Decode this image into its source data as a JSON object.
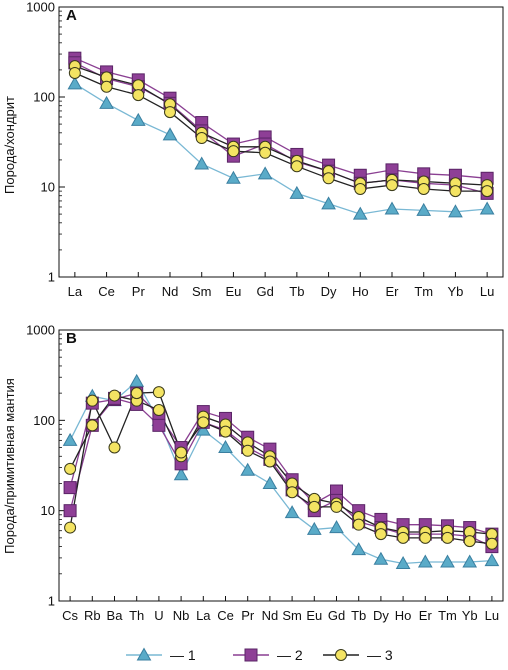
{
  "styles": [
    {
      "marker": "triangle",
      "fill": "#5aabc8",
      "stroke": "#3a7fa0",
      "line": "#79b8d4"
    },
    {
      "marker": "square",
      "fill": "#8e3f96",
      "stroke": "#5a2466",
      "line": "#8a3f92"
    },
    {
      "marker": "circle",
      "fill": "#f4e463",
      "stroke": "#3a3a1a",
      "line": "#222222"
    }
  ],
  "legend": {
    "items": [
      {
        "label": "— 1",
        "style": 0
      },
      {
        "label": "— 2",
        "style": 1
      },
      {
        "label": "— 3",
        "style": 2
      }
    ]
  },
  "chart_data": [
    {
      "type": "line",
      "panel_label": "A",
      "ylabel": "Порода/хондрит",
      "yscale": "log",
      "ylim": [
        1,
        1000
      ],
      "yticks": [
        1,
        10,
        100,
        1000
      ],
      "categories": [
        "La",
        "Ce",
        "Pr",
        "Nd",
        "Sm",
        "Eu",
        "Gd",
        "Tb",
        "Dy",
        "Ho",
        "Er",
        "Tm",
        "Yb",
        "Lu"
      ],
      "series": [
        {
          "style": 0,
          "values": [
            140,
            85,
            55,
            38,
            18,
            12.5,
            14,
            8.5,
            6.5,
            5,
            5.7,
            5.5,
            5.3,
            5.7
          ]
        },
        {
          "style": 1,
          "values": [
            270,
            190,
            155,
            97,
            52,
            30,
            36,
            23,
            17.5,
            13.5,
            15.5,
            14,
            13.5,
            12.5
          ]
        },
        {
          "style": 1,
          "values": [
            240,
            160,
            130,
            85,
            42,
            22,
            30,
            19,
            15,
            11,
            12,
            11,
            10.5,
            8.5
          ]
        },
        {
          "style": 2,
          "values": [
            220,
            165,
            135,
            83,
            40,
            28,
            28,
            19.5,
            15,
            11,
            12,
            11.5,
            11,
            10.5
          ]
        },
        {
          "style": 2,
          "values": [
            185,
            130,
            105,
            68,
            35,
            25,
            24,
            17,
            12.5,
            9.5,
            10.5,
            9.5,
            9,
            9
          ]
        }
      ]
    },
    {
      "type": "line",
      "panel_label": "B",
      "ylabel": "Порода/примитивная мантия",
      "yscale": "log",
      "ylim": [
        1,
        1000
      ],
      "yticks": [
        1,
        10,
        100,
        1000
      ],
      "categories": [
        "Cs",
        "Rb",
        "Ba",
        "Th",
        "U",
        "Nb",
        "La",
        "Ce",
        "Pr",
        "Nd",
        "Sm",
        "Eu",
        "Gd",
        "Tb",
        "Dy",
        "Ho",
        "Er",
        "Tm",
        "Yb",
        "Lu"
      ],
      "series": [
        {
          "style": 0,
          "values": [
            60,
            185,
            165,
            270,
            100,
            25,
            78,
            50,
            28,
            20,
            9.5,
            6.2,
            6.5,
            3.7,
            2.9,
            2.6,
            2.7,
            2.7,
            2.7,
            2.8
          ]
        },
        {
          "style": 1,
          "values": [
            18,
            155,
            170,
            200,
            115,
            50,
            125,
            105,
            65,
            48,
            22,
            12,
            16.5,
            10,
            8,
            7,
            7,
            6.8,
            6.5,
            5.5
          ]
        },
        {
          "style": 1,
          "values": [
            10,
            88,
            175,
            150,
            88,
            33,
            95,
            78,
            50,
            37,
            17,
            10,
            13,
            7.5,
            6.5,
            5.5,
            5.5,
            5.5,
            5.2,
            4
          ]
        },
        {
          "style": 2,
          "values": [
            29,
            88,
            188,
            165,
            130,
            40,
            110,
            90,
            57,
            40,
            20,
            13.5,
            12,
            8.5,
            6.5,
            5.8,
            5.8,
            6,
            5.8,
            5.5
          ]
        },
        {
          "style": 2,
          "values": [
            6.5,
            165,
            50,
            200,
            205,
            44,
            95,
            75,
            46,
            35,
            16,
            11,
            11,
            7,
            5.5,
            5,
            5,
            5,
            4.6,
            4.3
          ]
        }
      ]
    }
  ]
}
